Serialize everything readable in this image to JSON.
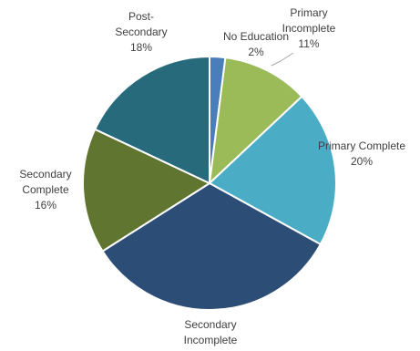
{
  "chart_data": {
    "type": "pie",
    "slices": [
      {
        "label": [
          "No Education"
        ],
        "pct_text": "2%",
        "value": 2,
        "color": "#4a7ebb"
      },
      {
        "label": [
          "Primary",
          "Incomplete"
        ],
        "pct_text": "11%",
        "value": 11,
        "color": "#9bbb59"
      },
      {
        "label": [
          "Primary Complete"
        ],
        "pct_text": "20%",
        "value": 20,
        "color": "#4bacc6"
      },
      {
        "label": [
          "Secondary",
          "Incomplete"
        ],
        "pct_text": "",
        "value": 33,
        "color": "#2c4d75"
      },
      {
        "label": [
          "Secondary",
          "Complete"
        ],
        "pct_text": "16%",
        "value": 16,
        "color": "#5f7530"
      },
      {
        "label": [
          "Post-",
          "Secondary"
        ],
        "pct_text": "18%",
        "value": 18,
        "color": "#276a7c"
      }
    ]
  }
}
